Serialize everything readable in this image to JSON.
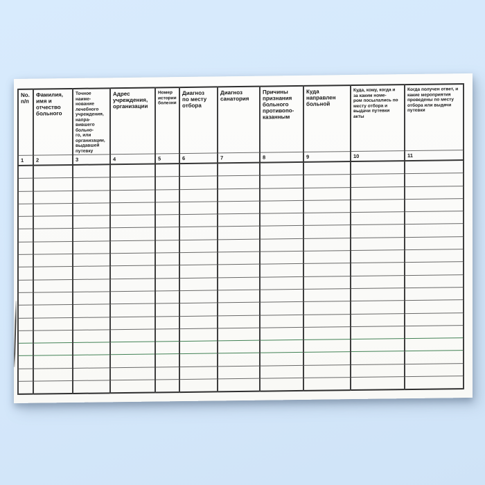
{
  "document": {
    "kind": "scanned-registry-form",
    "language": "ru"
  },
  "table": {
    "columns": [
      {
        "num": "1",
        "header": "No.\nп/п"
      },
      {
        "num": "2",
        "header": "Фамилия,\nимя и\nотчество\nбольного"
      },
      {
        "num": "3",
        "header": "Точное\nнаиме-\nнование\nлечебного\nучреждения,\nнапра-\nвившего\nбольно-\nго, или\nорганизации,\nвыдавшей\nпутевку"
      },
      {
        "num": "4",
        "header": "Адрес\nучреждения,\nорганизации"
      },
      {
        "num": "5",
        "header": "Номер\nистории\nболезни"
      },
      {
        "num": "6",
        "header": "Диагноз\nпо месту\nотбора"
      },
      {
        "num": "7",
        "header": "Диагноз\nсанатория"
      },
      {
        "num": "8",
        "header": "Причины\nпризнания\nбольного\nпротивопо-\nказанным"
      },
      {
        "num": "9",
        "header": "Куда\nнаправлен\nбольной"
      },
      {
        "num": "10",
        "header": "Куда, кому, когда и\nза каким номе-\nром посылались по\nместу отбора и\nвыдачи путевки\nакты"
      },
      {
        "num": "11",
        "header": "Когда получен ответ, и\nкакие мероприятия\nпроведены по месту\nотбора или выдачи\nпутевки"
      }
    ],
    "empty_row_count": 18,
    "green_line_rows": [
      14,
      15
    ],
    "cells_empty": true
  },
  "colors": {
    "backdrop": "#d6e9fc",
    "paper": "#fbfbf9",
    "grid_line": "#3d3d3d",
    "green_line": "#418154"
  }
}
